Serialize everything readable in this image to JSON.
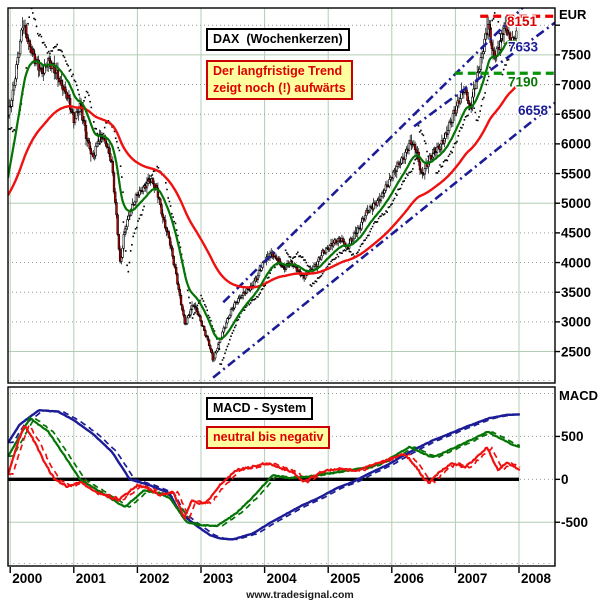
{
  "header": {
    "instrument_box": "DAX  (Wochenkerzen)",
    "trend_note_line1": "Der langfristige Trend",
    "trend_note_line2": "zeigt noch (!) aufwärts"
  },
  "macd_panel_text": {
    "system_box": "MACD - System",
    "note_box": "neutral bis negativ"
  },
  "watermark": "www.tradesignal.com",
  "colors": {
    "grid_green": "#b4ccb4",
    "grid_dotted": "#9a9a9a",
    "candle_down": "#cc0000",
    "ma_fast": "#047404",
    "ma_slow": "#ef1010",
    "trend_blue": "#1c1c96",
    "resistance_red": "#ee0000",
    "support_green": "#089408",
    "note_red": "#dd0000",
    "note_bg": "#ffffa0"
  },
  "chart_data": {
    "type": "candlestick",
    "title": "DAX (Wochenkerzen)",
    "subtitle_note": "Der langfristige Trend zeigt noch (!) aufwärts",
    "x_axis": {
      "years": [
        2000,
        2001,
        2002,
        2003,
        2004,
        2005,
        2006,
        2007,
        2008
      ],
      "range": [
        1999.965,
        2008.57
      ]
    },
    "price_axis": {
      "title": "EUR",
      "tick_labels": [
        7500,
        7000,
        6500,
        6000,
        5500,
        5000,
        4500,
        4000,
        3500,
        3000,
        2500
      ],
      "unlabeled_ticks": [
        8000
      ],
      "range": [
        1970,
        8290
      ],
      "solid_gridlines": [
        7500,
        5000,
        2500
      ],
      "dotted_gridlines": [
        8000,
        7000,
        6500,
        6000,
        5500,
        4500,
        4000,
        3500,
        3000
      ]
    },
    "macd_axis": {
      "title": "MACD",
      "tick_labels": [
        500,
        0,
        -500
      ],
      "range": [
        -1010,
        1076
      ],
      "solid_gridlines": [
        -500
      ],
      "dotted_gridlines": [
        1000,
        500,
        0
      ]
    },
    "price_anchors": [
      [
        1999.97,
        6500
      ],
      [
        2000.05,
        6900
      ],
      [
        2000.12,
        7450
      ],
      [
        2000.2,
        8050
      ],
      [
        2000.3,
        7650
      ],
      [
        2000.4,
        7400
      ],
      [
        2000.5,
        7200
      ],
      [
        2000.6,
        7400
      ],
      [
        2000.7,
        7250
      ],
      [
        2000.8,
        7000
      ],
      [
        2000.9,
        6800
      ],
      [
        2001.0,
        6400
      ],
      [
        2001.1,
        6650
      ],
      [
        2001.2,
        6100
      ],
      [
        2001.3,
        5750
      ],
      [
        2001.4,
        6150
      ],
      [
        2001.5,
        6050
      ],
      [
        2001.6,
        5650
      ],
      [
        2001.68,
        4650
      ],
      [
        2001.73,
        3950
      ],
      [
        2001.8,
        4550
      ],
      [
        2001.9,
        4900
      ],
      [
        2002.0,
        5150
      ],
      [
        2002.1,
        5250
      ],
      [
        2002.2,
        5400
      ],
      [
        2002.3,
        5250
      ],
      [
        2002.4,
        4750
      ],
      [
        2002.5,
        4400
      ],
      [
        2002.6,
        3850
      ],
      [
        2002.68,
        3350
      ],
      [
        2002.75,
        2950
      ],
      [
        2002.8,
        3100
      ],
      [
        2002.88,
        3300
      ],
      [
        2002.95,
        3150
      ],
      [
        2003.05,
        2850
      ],
      [
        2003.12,
        2650
      ],
      [
        2003.19,
        2350
      ],
      [
        2003.3,
        2700
      ],
      [
        2003.4,
        3000
      ],
      [
        2003.5,
        3250
      ],
      [
        2003.6,
        3400
      ],
      [
        2003.7,
        3500
      ],
      [
        2003.8,
        3600
      ],
      [
        2003.9,
        3800
      ],
      [
        2004.0,
        4050
      ],
      [
        2004.1,
        4150
      ],
      [
        2004.2,
        4050
      ],
      [
        2004.3,
        3900
      ],
      [
        2004.4,
        4000
      ],
      [
        2004.5,
        3900
      ],
      [
        2004.6,
        3750
      ],
      [
        2004.7,
        3850
      ],
      [
        2004.8,
        3950
      ],
      [
        2004.9,
        4150
      ],
      [
        2005.0,
        4250
      ],
      [
        2005.1,
        4350
      ],
      [
        2005.2,
        4400
      ],
      [
        2005.3,
        4250
      ],
      [
        2005.4,
        4450
      ],
      [
        2005.5,
        4600
      ],
      [
        2005.6,
        4850
      ],
      [
        2005.7,
        4950
      ],
      [
        2005.8,
        5050
      ],
      [
        2005.9,
        5250
      ],
      [
        2006.0,
        5450
      ],
      [
        2006.1,
        5650
      ],
      [
        2006.2,
        5800
      ],
      [
        2006.3,
        6050
      ],
      [
        2006.4,
        5850
      ],
      [
        2006.47,
        5450
      ],
      [
        2006.55,
        5650
      ],
      [
        2006.65,
        5850
      ],
      [
        2006.75,
        5950
      ],
      [
        2006.85,
        6150
      ],
      [
        2006.95,
        6450
      ],
      [
        2007.05,
        6700
      ],
      [
        2007.12,
        6900
      ],
      [
        2007.18,
        6850
      ],
      [
        2007.22,
        6550
      ],
      [
        2007.3,
        6950
      ],
      [
        2007.4,
        7400
      ],
      [
        2007.46,
        7750
      ],
      [
        2007.52,
        8000
      ],
      [
        2007.56,
        7700
      ],
      [
        2007.6,
        7450
      ],
      [
        2007.65,
        7550
      ],
      [
        2007.7,
        7700
      ],
      [
        2007.75,
        7900
      ],
      [
        2007.79,
        8000
      ],
      [
        2007.83,
        7850
      ],
      [
        2007.87,
        7650
      ],
      [
        2007.9,
        7750
      ],
      [
        2007.95,
        7850
      ]
    ],
    "candle_end": 2007.95,
    "moving_averages": [
      {
        "name": "fast-weekly-average",
        "span_weeks": 18,
        "color": "#047404",
        "start_value": 5300
      },
      {
        "name": "slow-weekly-average",
        "span_weeks": 80,
        "color": "#ef1010",
        "start_value": 5100
      }
    ],
    "stop_dot_segments": [
      [
        1999.965,
        2000.26,
        -1
      ],
      [
        2000.26,
        2001.78,
        1
      ],
      [
        2001.78,
        2002.12,
        -1
      ],
      [
        2002.12,
        2003.3,
        1
      ],
      [
        2003.3,
        2004.33,
        -1
      ],
      [
        2004.33,
        2004.72,
        1
      ],
      [
        2004.72,
        2006.42,
        -1
      ],
      [
        2006.42,
        2006.7,
        1
      ],
      [
        2006.7,
        2007.56,
        -1
      ],
      [
        2007.56,
        2007.74,
        1
      ],
      [
        2007.74,
        2007.95,
        -1
      ]
    ],
    "trendlines": [
      {
        "name": "steep-upper-trendline",
        "p1": [
          2003.35,
          3330
        ],
        "p2": [
          2008.1,
          8340
        ]
      },
      {
        "name": "upper-channel-line",
        "p1": [
          2006.35,
          6295
        ],
        "p2": [
          2008.6,
          8070
        ]
      },
      {
        "name": "lower-channel-line",
        "p1": [
          2003.19,
          2060
        ],
        "p2": [
          2008.6,
          6720
        ]
      }
    ],
    "horizontal_lines": [
      {
        "name": "resistance",
        "value": 8151,
        "from": 2007.39,
        "color": "#ee0000"
      },
      {
        "name": "support",
        "value": 7190,
        "from": 2006.99,
        "color": "#089408"
      }
    ],
    "level_labels": [
      {
        "text": "8151",
        "value": 8151,
        "color": "#dd0000"
      },
      {
        "text": "7633",
        "value": 7633,
        "color": "#1c1c96"
      },
      {
        "text": "7190",
        "value": 7190,
        "color": "#067806"
      },
      {
        "text": "6658",
        "value": 6658,
        "color": "#1c1c96"
      }
    ],
    "macd_series": [
      {
        "name": "macd-slow-blue",
        "color": "#1c1c96",
        "width": 2.4,
        "jag": 5,
        "anchors": [
          [
            1999.97,
            430
          ],
          [
            2000.15,
            640
          ],
          [
            2000.45,
            805
          ],
          [
            2000.75,
            790
          ],
          [
            2001.0,
            690
          ],
          [
            2001.3,
            530
          ],
          [
            2001.6,
            320
          ],
          [
            2001.88,
            0
          ],
          [
            2002.2,
            -70
          ],
          [
            2002.5,
            -160
          ],
          [
            2002.67,
            -390
          ],
          [
            2002.91,
            -530
          ],
          [
            2003.14,
            -650
          ],
          [
            2003.3,
            -690
          ],
          [
            2003.5,
            -700
          ],
          [
            2003.82,
            -630
          ],
          [
            2004.08,
            -510
          ],
          [
            2004.35,
            -400
          ],
          [
            2004.6,
            -300
          ],
          [
            2004.87,
            -210
          ],
          [
            2005.14,
            -100
          ],
          [
            2005.39,
            -30
          ],
          [
            2005.66,
            75
          ],
          [
            2005.95,
            175
          ],
          [
            2006.2,
            285
          ],
          [
            2006.44,
            380
          ],
          [
            2006.65,
            455
          ],
          [
            2006.87,
            520
          ],
          [
            2007.18,
            615
          ],
          [
            2007.54,
            715
          ],
          [
            2007.8,
            750
          ],
          [
            2008.03,
            758
          ]
        ]
      },
      {
        "name": "macd-medium-green",
        "color": "#047404",
        "width": 2.2,
        "jag": 11,
        "anchors": [
          [
            1999.97,
            270
          ],
          [
            2000.31,
            715
          ],
          [
            2000.6,
            555
          ],
          [
            2000.85,
            280
          ],
          [
            2001.1,
            0
          ],
          [
            2001.5,
            -185
          ],
          [
            2001.8,
            -325
          ],
          [
            2002.1,
            -130
          ],
          [
            2002.35,
            -165
          ],
          [
            2002.51,
            -220
          ],
          [
            2002.77,
            -495
          ],
          [
            2002.94,
            -530
          ],
          [
            2003.25,
            -545
          ],
          [
            2003.56,
            -390
          ],
          [
            2003.82,
            -205
          ],
          [
            2004.03,
            -30
          ],
          [
            2004.13,
            50
          ],
          [
            2004.35,
            15
          ],
          [
            2004.6,
            25
          ],
          [
            2004.9,
            55
          ],
          [
            2005.14,
            85
          ],
          [
            2005.66,
            145
          ],
          [
            2005.95,
            235
          ],
          [
            2006.28,
            380
          ],
          [
            2006.5,
            300
          ],
          [
            2006.64,
            255
          ],
          [
            2006.87,
            330
          ],
          [
            2007.18,
            435
          ],
          [
            2007.51,
            555
          ],
          [
            2007.7,
            480
          ],
          [
            2007.9,
            400
          ],
          [
            2008.03,
            375
          ]
        ]
      },
      {
        "name": "macd-fast-red",
        "color": "#ef1010",
        "width": 2.2,
        "jag": 24,
        "anchors": [
          [
            1999.97,
            60
          ],
          [
            2000.1,
            380
          ],
          [
            2000.22,
            635
          ],
          [
            2000.4,
            420
          ],
          [
            2000.55,
            180
          ],
          [
            2000.7,
            0
          ],
          [
            2000.9,
            -85
          ],
          [
            2001.1,
            -25
          ],
          [
            2001.35,
            -150
          ],
          [
            2001.7,
            -245
          ],
          [
            2001.85,
            -160
          ],
          [
            2002.0,
            -65
          ],
          [
            2002.2,
            -120
          ],
          [
            2002.35,
            -185
          ],
          [
            2002.56,
            -150
          ],
          [
            2002.74,
            -450
          ],
          [
            2002.85,
            -245
          ],
          [
            2002.97,
            -280
          ],
          [
            2003.09,
            -265
          ],
          [
            2003.3,
            -70
          ],
          [
            2003.45,
            40
          ],
          [
            2003.56,
            110
          ],
          [
            2003.82,
            145
          ],
          [
            2004.03,
            190
          ],
          [
            2004.24,
            135
          ],
          [
            2004.45,
            80
          ],
          [
            2004.6,
            -30
          ],
          [
            2004.87,
            75
          ],
          [
            2005.03,
            110
          ],
          [
            2005.2,
            125
          ],
          [
            2005.45,
            95
          ],
          [
            2005.66,
            165
          ],
          [
            2005.9,
            220
          ],
          [
            2006.2,
            300
          ],
          [
            2006.38,
            150
          ],
          [
            2006.52,
            -10
          ],
          [
            2006.6,
            -35
          ],
          [
            2006.75,
            90
          ],
          [
            2006.96,
            190
          ],
          [
            2007.15,
            135
          ],
          [
            2007.34,
            260
          ],
          [
            2007.5,
            370
          ],
          [
            2007.67,
            110
          ],
          [
            2007.81,
            190
          ],
          [
            2008.03,
            105
          ]
        ]
      }
    ],
    "macd_zero_line_end": 2008.0,
    "macd_line_end": 2008.03
  }
}
